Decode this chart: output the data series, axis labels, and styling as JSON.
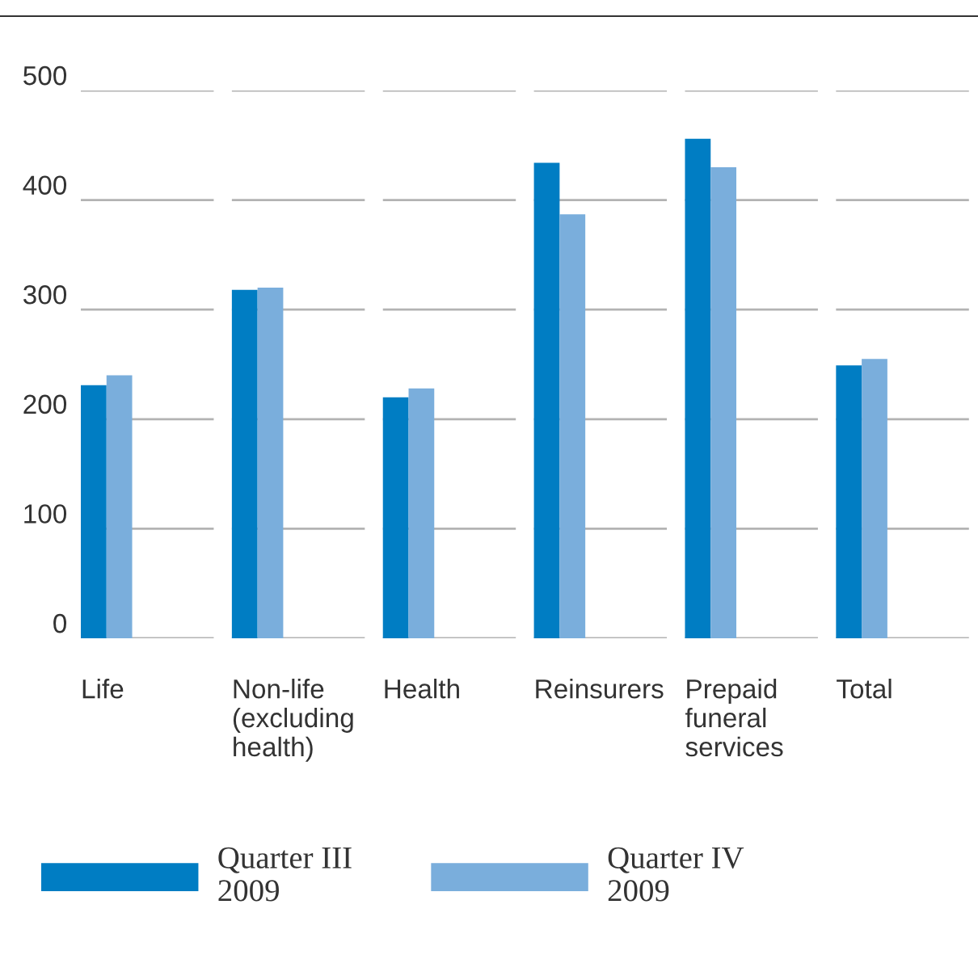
{
  "chart_data": {
    "type": "bar",
    "categories": [
      "Life",
      "Non-life\n(excluding\nhealth)",
      "Health",
      "Reinsurers",
      "Prepaid\nfuneral\nservices",
      "Total"
    ],
    "series": [
      {
        "name": "Quarter III\n2009",
        "color": "#007dc3",
        "values": [
          231,
          318,
          220,
          434,
          456,
          249
        ]
      },
      {
        "name": "Quarter IV\n2009",
        "color": "#7aaedc",
        "values": [
          240,
          320,
          228,
          387,
          430,
          255
        ]
      }
    ],
    "ylim": [
      0,
      500
    ],
    "yticks": [
      0,
      100,
      200,
      300,
      400,
      500
    ],
    "grid": "y",
    "legend": "bottom"
  }
}
